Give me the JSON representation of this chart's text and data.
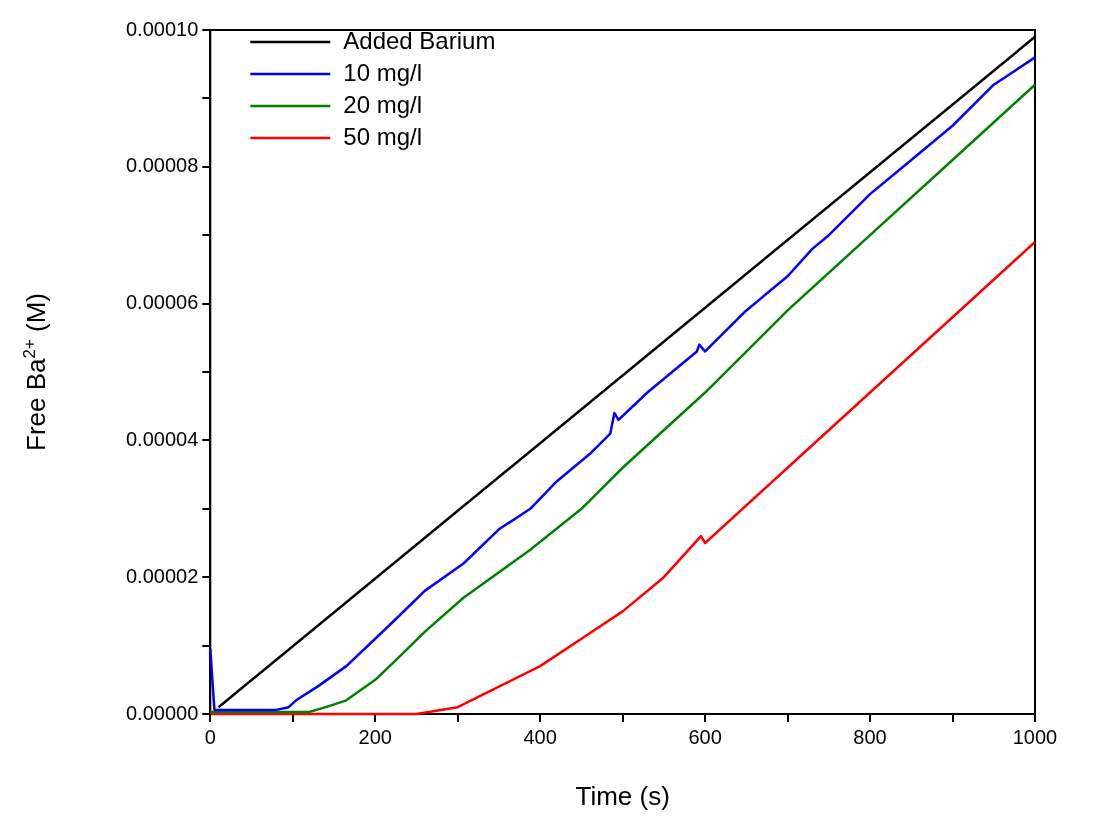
{
  "chart_data": {
    "type": "line",
    "xlabel": "Time (s)",
    "ylabel": "Free Ba$^{2+}$ (M)",
    "legend": "top left",
    "marker": "none",
    "line_style": "solid",
    "xlim": [
      0,
      1000
    ],
    "xticks": [
      0,
      {
        "value": 100,
        "label": null
      },
      200,
      {
        "value": 300,
        "label": null
      },
      400,
      {
        "value": 500,
        "label": null
      },
      600,
      {
        "value": 700,
        "label": null
      },
      800,
      {
        "value": 900,
        "label": null
      },
      1000
    ],
    "ylim": [
      0,
      0.0001
    ],
    "yticks": [
      {
        "value": 0,
        "label": "0.00000"
      },
      {
        "value": 1e-05,
        "label": null
      },
      {
        "value": 2e-05,
        "label": "0.00002"
      },
      {
        "value": 3e-05,
        "label": null
      },
      {
        "value": 4e-05,
        "label": "0.00004"
      },
      {
        "value": 5e-05,
        "label": null
      },
      {
        "value": 6e-05,
        "label": "0.00006"
      },
      {
        "value": 7e-05,
        "label": null
      },
      {
        "value": 8e-05,
        "label": "0.00008"
      },
      {
        "value": 9e-05,
        "label": null
      },
      {
        "value": 0.0001,
        "label": "0.00010"
      }
    ],
    "series": [
      {
        "name": "Added Barium",
        "color": "#000000",
        "x": [
          10,
          1000
        ],
        "values": [
          1e-06,
          9.9e-05
        ]
      },
      {
        "name": "10 mg/l",
        "color": "#0000ff",
        "x": [
          0,
          5,
          10,
          50,
          80,
          95,
          104,
          130,
          165,
          200,
          226,
          260,
          307,
          350,
          388,
          420,
          460,
          485,
          490,
          495,
          530,
          560,
          590,
          593,
          600,
          650,
          700,
          730,
          750,
          800,
          850,
          900,
          950,
          1000
        ],
        "values": [
          9.5e-06,
          6e-07,
          6e-07,
          6e-07,
          6e-07,
          1e-06,
          2e-06,
          4e-06,
          7e-06,
          1.1e-05,
          1.4e-05,
          1.8e-05,
          2.2e-05,
          2.7e-05,
          3e-05,
          3.4e-05,
          3.8e-05,
          4.1e-05,
          4.4e-05,
          4.3e-05,
          4.7e-05,
          5e-05,
          5.3e-05,
          5.4e-05,
          5.3e-05,
          5.9e-05,
          6.4e-05,
          6.8e-05,
          7e-05,
          7.6e-05,
          8.1e-05,
          8.6e-05,
          9.2e-05,
          9.6e-05
        ]
      },
      {
        "name": "20 mg/l",
        "color": "#008000",
        "x": [
          0,
          120,
          140,
          165,
          200,
          226,
          260,
          307,
          388,
          450,
          500,
          600,
          700,
          800,
          900,
          1000
        ],
        "values": [
          3e-07,
          3e-07,
          1e-06,
          2e-06,
          5e-06,
          8e-06,
          1.2e-05,
          1.7e-05,
          2.4e-05,
          3e-05,
          3.6e-05,
          4.7e-05,
          5.9e-05,
          7e-05,
          8.1e-05,
          9.2e-05
        ]
      },
      {
        "name": "50 mg/l",
        "color": "#ff0000",
        "x": [
          0,
          250,
          300,
          350,
          400,
          450,
          500,
          550,
          595,
          600,
          700,
          800,
          900,
          1000
        ],
        "values": [
          0,
          0,
          1e-06,
          4e-06,
          7e-06,
          1.1e-05,
          1.5e-05,
          2e-05,
          2.6e-05,
          2.5e-05,
          3.6e-05,
          4.7e-05,
          5.8e-05,
          6.9e-05
        ]
      }
    ]
  }
}
